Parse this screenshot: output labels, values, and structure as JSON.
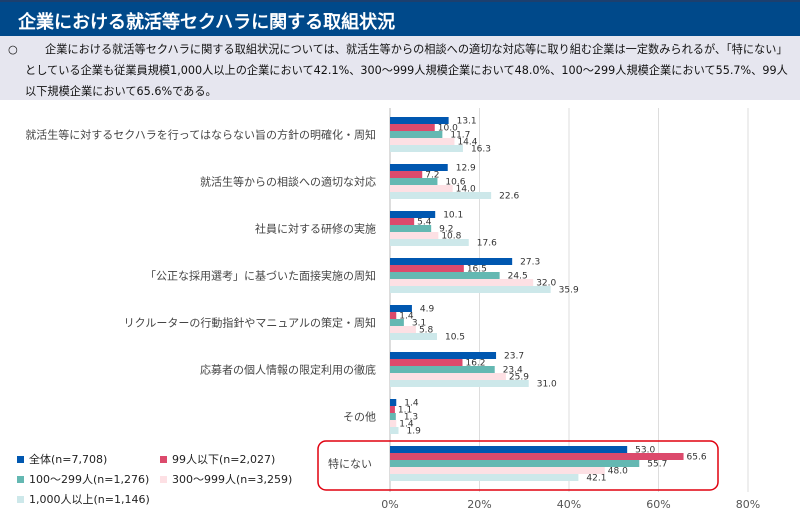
{
  "header": {
    "title": "企業における就活等セクハラに関する取組状況"
  },
  "summary": {
    "bullet": "○",
    "text": "企業における就活等セクハラに関する取組状況については、就活生等からの相談への適切な対応等に取り組む企業は一定数みられるが、「特にない」としている企業も従業員規模1,000人以上の企業において42.1%、300〜999人規模企業において48.0%、100〜299人規模企業において55.7%、99人以下規模企業において65.6%である。"
  },
  "chart_data": {
    "type": "bar",
    "orientation": "horizontal",
    "grid": true,
    "legend": "bottom-left",
    "xlim": [
      0,
      80
    ],
    "ticks": [
      "0%",
      "20%",
      "40%",
      "60%",
      "80%"
    ],
    "categories": [
      "就活生等に対するセクハラを行ってはならない旨の方針の明確化・周知",
      "就活生等からの相談への適切な対応",
      "社員に対する研修の実施",
      "「公正な採用選考」に基づいた面接実施の周知",
      "リクルーターの行動指針やマニュアルの策定・周知",
      "応募者の個人情報の限定利用の徹底",
      "その他",
      "特にない"
    ],
    "highlighted_category": "特にない",
    "series": [
      {
        "name": "全体(n=7,708)",
        "color": "#0057b0",
        "values": [
          13.1,
          12.9,
          10.1,
          27.3,
          4.9,
          23.7,
          1.4,
          53.0
        ]
      },
      {
        "name": "99人以下(n=2,027)",
        "color": "#dc4a6c",
        "values": [
          10.0,
          7.2,
          5.4,
          16.5,
          1.4,
          16.2,
          1.1,
          65.6
        ]
      },
      {
        "name": "100〜299人(n=1,276)",
        "color": "#64b8b2",
        "values": [
          11.7,
          10.6,
          9.2,
          24.5,
          3.1,
          23.4,
          1.3,
          55.7
        ]
      },
      {
        "name": "300〜999人(n=3,259)",
        "color": "#fde0e4",
        "values": [
          14.4,
          14.0,
          10.8,
          32.0,
          5.8,
          25.9,
          1.4,
          48.0
        ]
      },
      {
        "name": "1,000人以上(n=1,146)",
        "color": "#cde8ea",
        "values": [
          16.3,
          22.6,
          17.6,
          35.9,
          10.5,
          31.0,
          1.9,
          42.1
        ]
      }
    ]
  }
}
